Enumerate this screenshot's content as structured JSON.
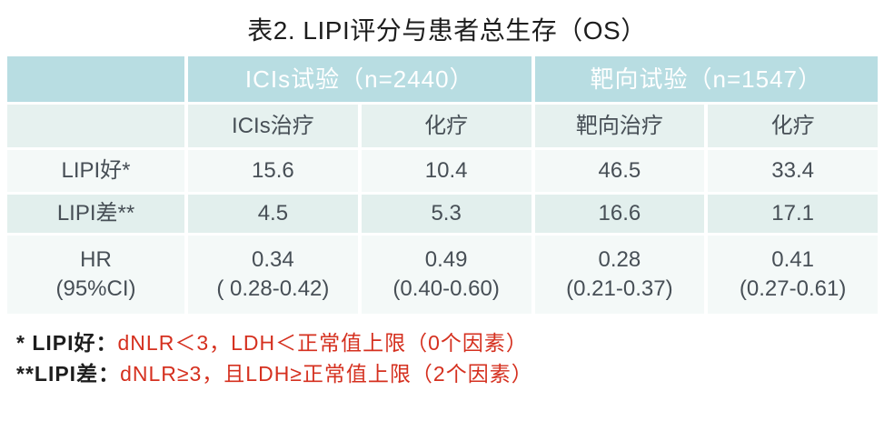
{
  "title": "表2. LIPI评分与患者总生存（OS）",
  "table": {
    "group_headers": [
      {
        "label": "ICIs试验（n=2440）"
      },
      {
        "label": "靶向试验（n=1547）"
      }
    ],
    "column_headers": [
      "ICIs治疗",
      "化疗",
      "靶向治疗",
      "化疗"
    ],
    "rows": [
      {
        "label": "LIPI好*",
        "values": [
          "15.6",
          "10.4",
          "46.5",
          "33.4"
        ]
      },
      {
        "label": "LIPI差**",
        "values": [
          "4.5",
          "5.3",
          "16.6",
          "17.1"
        ]
      },
      {
        "label": "HR\n(95%CI)",
        "values": [
          "0.34\n( 0.28-0.42)",
          "0.49\n(0.40-0.60)",
          "0.28\n(0.21-0.37)",
          "0.41\n(0.27-0.61)"
        ]
      }
    ]
  },
  "footnotes": [
    {
      "prefix": "* LIPI好：",
      "detail": "dNLR＜3，LDH＜正常值上限（0个因素）"
    },
    {
      "prefix": "**LIPI差：",
      "detail": "dNLR≥3，且LDH≥正常值上限（2个因素）"
    }
  ],
  "colors": {
    "header_bg": "#b8dde2",
    "header_text": "#ffffff",
    "shade_row_bg": "#e6f1ef",
    "shade2_row_bg": "#e2efed",
    "light_row_bg": "#f4f9f8",
    "cell_text": "#474f56",
    "ink": "#1d1d1d",
    "accent_red": "#d5301f"
  }
}
